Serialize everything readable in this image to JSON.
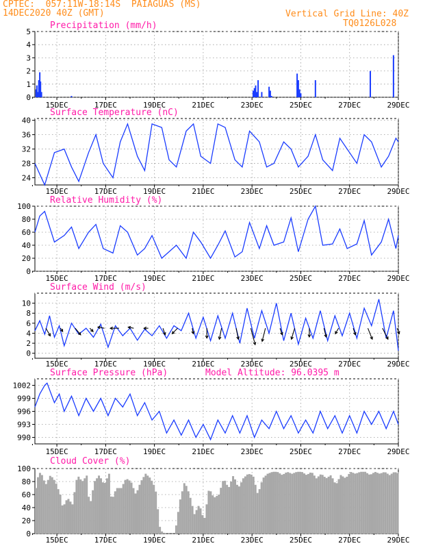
{
  "header": {
    "line1": "CPTEC:  057:11W-18:14S  PAIAGUAS (MS)",
    "line2": "14DEC2020 40Z (GMT)",
    "grid_note": "Vertical Grid Line: 40Z",
    "code": "TQ0126L028"
  },
  "colors": {
    "header": "#ff8c1a",
    "title": "#ff1aa8",
    "line": "#1a3cff",
    "bar": "#1a3cff",
    "cloud": "#a8a8a8",
    "arrow": "#000000"
  },
  "x_ticks": [
    "15DEC",
    "17DEC",
    "19DEC",
    "21DEC",
    "23DEC",
    "25DEC",
    "27DEC",
    "29DEC"
  ],
  "chart_data": [
    {
      "id": "precip",
      "type": "bar",
      "title": "Precipitation (mm/h)",
      "ylim": [
        0,
        5
      ],
      "yticks": [
        "0",
        "1",
        "2",
        "3",
        "4",
        "5"
      ],
      "x_range_days": [
        14.1,
        29.0
      ],
      "x": [
        14.15,
        14.18,
        14.22,
        14.26,
        14.3,
        14.33,
        14.37,
        15.6,
        23.05,
        23.1,
        23.15,
        23.2,
        23.25,
        23.4,
        23.7,
        23.75,
        23.8,
        24.85,
        24.9,
        24.95,
        25.0,
        25.6,
        27.85,
        28.8
      ],
      "values": [
        0.6,
        0.9,
        0.4,
        1.3,
        1.9,
        1.2,
        0.4,
        0.1,
        0.5,
        0.7,
        0.9,
        0.4,
        1.3,
        0.4,
        0.8,
        0.5,
        0.1,
        1.8,
        1.3,
        0.6,
        0.3,
        1.3,
        2.0,
        3.2
      ]
    },
    {
      "id": "temp",
      "type": "line",
      "title": "Surface Temperature (nC)",
      "ylim": [
        22,
        40.5
      ],
      "yticks": [
        "24",
        "28",
        "32",
        "36",
        "40"
      ],
      "x": [
        14.1,
        14.3,
        14.5,
        14.9,
        15.3,
        15.6,
        15.9,
        16.3,
        16.6,
        16.9,
        17.3,
        17.6,
        17.9,
        18.3,
        18.6,
        18.9,
        19.3,
        19.6,
        19.9,
        20.3,
        20.6,
        20.9,
        21.3,
        21.6,
        21.9,
        22.3,
        22.6,
        22.9,
        23.3,
        23.6,
        23.9,
        24.3,
        24.6,
        24.9,
        25.3,
        25.6,
        25.9,
        26.3,
        26.6,
        26.9,
        27.3,
        27.6,
        27.9,
        28.3,
        28.6,
        28.9,
        29.0
      ],
      "values": [
        28,
        25,
        22,
        31,
        32,
        27,
        23,
        31,
        36,
        28,
        24,
        34,
        39,
        30,
        26,
        39,
        38,
        29,
        27,
        37,
        39,
        30,
        28,
        39,
        38,
        29,
        27,
        37,
        34,
        27,
        28,
        34,
        32,
        27,
        30,
        36,
        29,
        26,
        35,
        32,
        28,
        36,
        34,
        27,
        30,
        35,
        34
      ]
    },
    {
      "id": "rh",
      "type": "line",
      "title": "Relative Humidity (%)",
      "ylim": [
        0,
        100
      ],
      "yticks": [
        "0",
        "20",
        "40",
        "60",
        "80",
        "100"
      ],
      "x": [
        14.1,
        14.3,
        14.5,
        14.9,
        15.3,
        15.6,
        15.9,
        16.3,
        16.6,
        16.9,
        17.3,
        17.6,
        17.9,
        18.3,
        18.6,
        18.9,
        19.3,
        19.6,
        19.9,
        20.3,
        20.6,
        20.9,
        21.3,
        21.6,
        21.9,
        22.3,
        22.6,
        22.9,
        23.3,
        23.6,
        23.9,
        24.3,
        24.6,
        24.9,
        25.3,
        25.6,
        25.9,
        26.3,
        26.6,
        26.9,
        27.3,
        27.6,
        27.9,
        28.3,
        28.6,
        28.9,
        29.0
      ],
      "values": [
        60,
        85,
        92,
        45,
        55,
        68,
        35,
        60,
        72,
        35,
        28,
        70,
        60,
        25,
        35,
        55,
        20,
        30,
        40,
        20,
        60,
        45,
        20,
        40,
        62,
        22,
        30,
        75,
        35,
        70,
        40,
        45,
        82,
        30,
        80,
        100,
        40,
        42,
        65,
        35,
        42,
        78,
        25,
        45,
        80,
        35,
        55
      ]
    },
    {
      "id": "wind",
      "type": "line",
      "title": "Surface Wind (m/s)",
      "ylim": [
        -1,
        12
      ],
      "yticks": [
        "0",
        "2",
        "4",
        "6",
        "8",
        "10"
      ],
      "x": [
        14.1,
        14.3,
        14.5,
        14.7,
        14.9,
        15.1,
        15.3,
        15.6,
        15.9,
        16.2,
        16.5,
        16.8,
        17.1,
        17.4,
        17.7,
        18.0,
        18.3,
        18.6,
        18.9,
        19.2,
        19.5,
        19.8,
        20.1,
        20.4,
        20.7,
        21.0,
        21.3,
        21.6,
        21.9,
        22.2,
        22.5,
        22.8,
        23.1,
        23.4,
        23.7,
        24.0,
        24.3,
        24.6,
        24.9,
        25.2,
        25.5,
        25.8,
        26.1,
        26.4,
        26.7,
        27.0,
        27.3,
        27.6,
        27.9,
        28.2,
        28.5,
        28.8,
        29.0
      ],
      "values": [
        4.5,
        6.5,
        3.8,
        7.5,
        3.2,
        5.5,
        1.5,
        6.0,
        3.8,
        5.0,
        3.2,
        5.8,
        1.2,
        5.5,
        3.5,
        5.0,
        2.6,
        4.8,
        3.5,
        5.5,
        3.0,
        5.5,
        4.5,
        8.0,
        3.0,
        7.2,
        2.5,
        7.5,
        3.0,
        8.0,
        2.0,
        9.0,
        3.0,
        8.5,
        4.0,
        10.0,
        2.5,
        8.0,
        1.8,
        7.0,
        3.0,
        8.5,
        2.5,
        7.5,
        3.5,
        8.0,
        3.0,
        9.0,
        5.5,
        10.8,
        3.0,
        8.5,
        0.5
      ]
    },
    {
      "id": "wind_vectors",
      "type": "vector",
      "title": "",
      "x": [
        14.55,
        15.15,
        15.75,
        16.35,
        16.95,
        17.55,
        18.15,
        18.75,
        19.35,
        19.95,
        20.55,
        21.15,
        21.75,
        22.35,
        22.95,
        23.55,
        24.15,
        24.75,
        25.35,
        25.95,
        26.55,
        27.15,
        27.75,
        28.35,
        28.95
      ],
      "u": [
        0.4,
        0.2,
        0.5,
        0.3,
        -0.6,
        -0.8,
        -0.5,
        -0.4,
        0.2,
        -0.5,
        0.1,
        0.0,
        -0.2,
        0.2,
        0.4,
        -0.3,
        0.2,
        -0.3,
        0.0,
        0.2,
        -0.3,
        0.2,
        0.4,
        0.5,
        0.2
      ],
      "v": [
        -0.7,
        -0.3,
        -0.6,
        -0.3,
        0.1,
        0.0,
        0.1,
        0.0,
        -0.6,
        -0.5,
        -0.5,
        -0.9,
        -1.0,
        -1.0,
        -1.5,
        -1.2,
        -0.6,
        -1.0,
        -0.8,
        -0.8,
        -0.5,
        -0.6,
        -1.0,
        -1.0,
        -0.5
      ]
    },
    {
      "id": "pres",
      "type": "line",
      "title": "Surface Pressure (hPa)",
      "note": "Model Altitude: 96.0395 m",
      "ylim": [
        988.5,
        1003.5
      ],
      "yticks": [
        "990",
        "993",
        "996",
        "999",
        "1002"
      ],
      "x": [
        14.1,
        14.3,
        14.5,
        14.6,
        14.9,
        15.1,
        15.3,
        15.6,
        15.9,
        16.2,
        16.5,
        16.8,
        17.1,
        17.4,
        17.7,
        18.0,
        18.3,
        18.6,
        18.9,
        19.2,
        19.5,
        19.8,
        20.1,
        20.4,
        20.7,
        21.0,
        21.3,
        21.6,
        21.9,
        22.2,
        22.5,
        22.8,
        23.1,
        23.4,
        23.7,
        24.0,
        24.3,
        24.6,
        24.9,
        25.2,
        25.5,
        25.8,
        26.1,
        26.4,
        26.7,
        27.0,
        27.3,
        27.6,
        27.9,
        28.2,
        28.5,
        28.8,
        29.0
      ],
      "values": [
        997,
        1000,
        1002,
        1002.5,
        998,
        1000,
        996,
        999.5,
        995,
        999,
        996,
        999,
        995,
        999,
        997,
        1000,
        995,
        998,
        994,
        996,
        991,
        994,
        990.5,
        994,
        990,
        993,
        989.5,
        994,
        991,
        995,
        991,
        995,
        990,
        994,
        992,
        996,
        992,
        995,
        991,
        994,
        991,
        996,
        992,
        995,
        991,
        995,
        991,
        996,
        993,
        996,
        992,
        996,
        993
      ]
    },
    {
      "id": "cloud",
      "type": "area",
      "title": "Cloud Cover (%)",
      "ylim": [
        0,
        100
      ],
      "yticks": [
        "0",
        "20",
        "40",
        "60",
        "80",
        "100"
      ],
      "x": [
        14.1,
        14.2,
        14.3,
        14.4,
        14.5,
        14.7,
        14.9,
        15.1,
        15.2,
        15.4,
        15.6,
        15.8,
        16.0,
        16.2,
        16.3,
        16.5,
        16.7,
        16.9,
        17.1,
        17.2,
        17.4,
        17.6,
        17.8,
        18.0,
        18.2,
        18.4,
        18.6,
        18.8,
        19.0,
        19.2,
        19.4,
        19.6,
        19.8,
        20.0,
        20.2,
        20.4,
        20.6,
        20.8,
        21.0,
        21.2,
        21.4,
        21.6,
        21.8,
        22.0,
        22.2,
        22.4,
        22.6,
        22.8,
        23.0,
        23.2,
        23.4,
        23.6,
        23.8,
        24.0,
        24.2,
        24.4,
        24.6,
        24.8,
        25.0,
        25.2,
        25.4,
        25.6,
        25.8,
        26.0,
        26.2,
        26.4,
        26.6,
        26.8,
        27.0,
        27.2,
        27.4,
        27.6,
        27.8,
        28.0,
        28.2,
        28.4,
        28.6,
        28.8,
        29.0
      ],
      "values": [
        70,
        90,
        95,
        85,
        75,
        90,
        80,
        60,
        40,
        55,
        45,
        90,
        80,
        90,
        40,
        80,
        90,
        75,
        92,
        50,
        70,
        70,
        85,
        80,
        60,
        80,
        92,
        85,
        70,
        5,
        0,
        0,
        0,
        50,
        80,
        60,
        30,
        45,
        20,
        70,
        55,
        60,
        85,
        70,
        90,
        70,
        85,
        92,
        90,
        60,
        85,
        92,
        95,
        95,
        90,
        95,
        92,
        95,
        95,
        90,
        95,
        85,
        92,
        85,
        90,
        75,
        90,
        85,
        95,
        92,
        95,
        95,
        90,
        95,
        92,
        95,
        90,
        95,
        92
      ]
    }
  ]
}
